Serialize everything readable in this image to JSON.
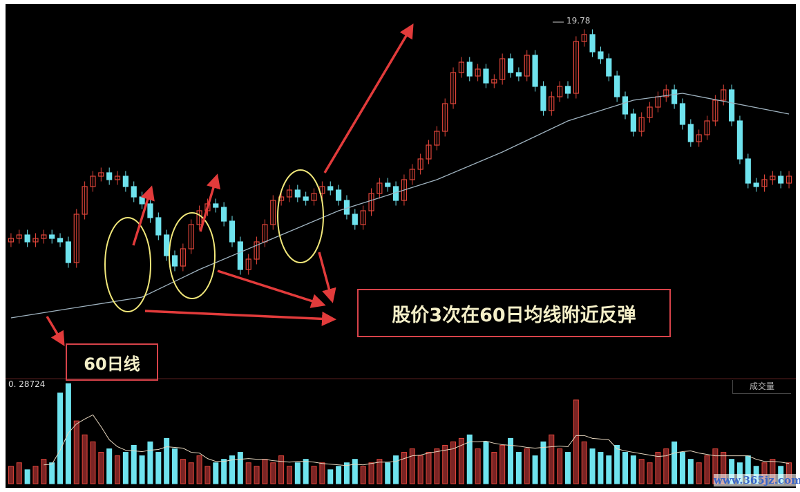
{
  "chart_data": {
    "type": "candlestick",
    "price_high_label": "19.78",
    "close": [
      13.5,
      13.6,
      13.4,
      13.5,
      13.6,
      13.5,
      13.4,
      12.8,
      14.2,
      15.0,
      15.3,
      15.4,
      15.2,
      15.3,
      15.0,
      14.7,
      14.5,
      14.1,
      13.6,
      13.0,
      12.7,
      13.2,
      13.9,
      14.3,
      14.5,
      14.4,
      14.0,
      13.4,
      12.6,
      12.9,
      13.4,
      13.9,
      14.6,
      14.7,
      14.9,
      14.7,
      14.6,
      14.8,
      15.0,
      14.9,
      14.6,
      14.2,
      13.9,
      14.3,
      14.8,
      15.1,
      15.0,
      14.6,
      15.2,
      15.5,
      15.8,
      16.2,
      16.6,
      17.4,
      18.3,
      18.6,
      18.2,
      18.4,
      18.0,
      18.1,
      18.7,
      18.3,
      18.2,
      18.8,
      17.9,
      17.2,
      17.6,
      17.9,
      17.7,
      19.2,
      19.4,
      18.9,
      18.7,
      18.2,
      17.6,
      17.1,
      16.6,
      17.0,
      17.3,
      17.6,
      17.8,
      17.4,
      16.8,
      16.3,
      16.5,
      16.9,
      17.5,
      17.8,
      16.9,
      15.8,
      15.1,
      15.0,
      15.2,
      15.3,
      15.1,
      15.3
    ],
    "open": [
      13.4,
      13.5,
      13.6,
      13.4,
      13.5,
      13.6,
      13.5,
      13.4,
      12.8,
      14.2,
      15.0,
      15.3,
      15.4,
      15.2,
      15.3,
      15.0,
      14.7,
      14.5,
      14.1,
      13.6,
      13.0,
      12.7,
      13.2,
      13.9,
      14.3,
      14.5,
      14.4,
      14.0,
      13.4,
      12.6,
      12.9,
      13.4,
      13.9,
      14.6,
      14.7,
      14.9,
      14.7,
      14.6,
      14.8,
      15.0,
      14.9,
      14.6,
      14.2,
      13.9,
      14.3,
      14.8,
      15.1,
      15.0,
      14.6,
      15.2,
      15.5,
      15.8,
      16.2,
      16.6,
      17.4,
      18.3,
      18.6,
      18.2,
      18.4,
      18.0,
      18.1,
      18.7,
      18.3,
      18.2,
      18.8,
      17.9,
      17.2,
      17.6,
      17.9,
      17.7,
      19.2,
      19.4,
      18.9,
      18.7,
      18.2,
      17.6,
      17.1,
      16.6,
      17.0,
      17.3,
      17.6,
      17.8,
      17.4,
      16.8,
      16.3,
      16.5,
      16.9,
      17.5,
      17.8,
      16.9,
      15.8,
      15.1,
      15.0,
      15.2,
      15.3,
      15.1
    ],
    "ma60": {
      "index": [
        0,
        16,
        23,
        35,
        40,
        52,
        60,
        68,
        76,
        82,
        95
      ],
      "value": [
        11.2,
        11.8,
        12.6,
        13.8,
        14.3,
        15.2,
        16.0,
        16.9,
        17.5,
        17.7,
        17.1
      ]
    },
    "volume": [
      5000,
      6000,
      4000,
      5000,
      7000,
      6000,
      26000,
      28700,
      18000,
      14000,
      12000,
      9000,
      10000,
      8000,
      9000,
      11000,
      8000,
      12000,
      9000,
      13000,
      10000,
      7000,
      6000,
      8000,
      5000,
      6000,
      7000,
      8000,
      9000,
      6000,
      5000,
      7000,
      6000,
      8000,
      5000,
      6000,
      7000,
      5000,
      6000,
      4000,
      5000,
      6000,
      7000,
      5000,
      6000,
      7000,
      6000,
      8000,
      9000,
      10000,
      8000,
      9000,
      10000,
      11000,
      12000,
      13000,
      14000,
      10000,
      12000,
      9000,
      11000,
      13000,
      9000,
      10000,
      8000,
      12000,
      14000,
      10000,
      9000,
      24000,
      12000,
      10000,
      9000,
      8000,
      11000,
      9000,
      8000,
      7000,
      6000,
      9000,
      10000,
      12000,
      9000,
      7000,
      6000,
      8000,
      10000,
      9000,
      7000,
      6000,
      8000,
      5000,
      6000,
      7000,
      5000,
      6000
    ],
    "volume_max_label": "0. 28724",
    "volume_panel_label": "成交量",
    "colors": {
      "up": "#e0453a",
      "down": "#6fe3ee",
      "ma60": "#9fb3c0",
      "annotation_ellipse": "#f1e77a",
      "annotation_arrow": "#e23b3b"
    }
  },
  "annotations": {
    "label_60": "60日线",
    "main_note": "股价3次在60日均线附近反弹"
  },
  "watermark": "www.365jz.com"
}
